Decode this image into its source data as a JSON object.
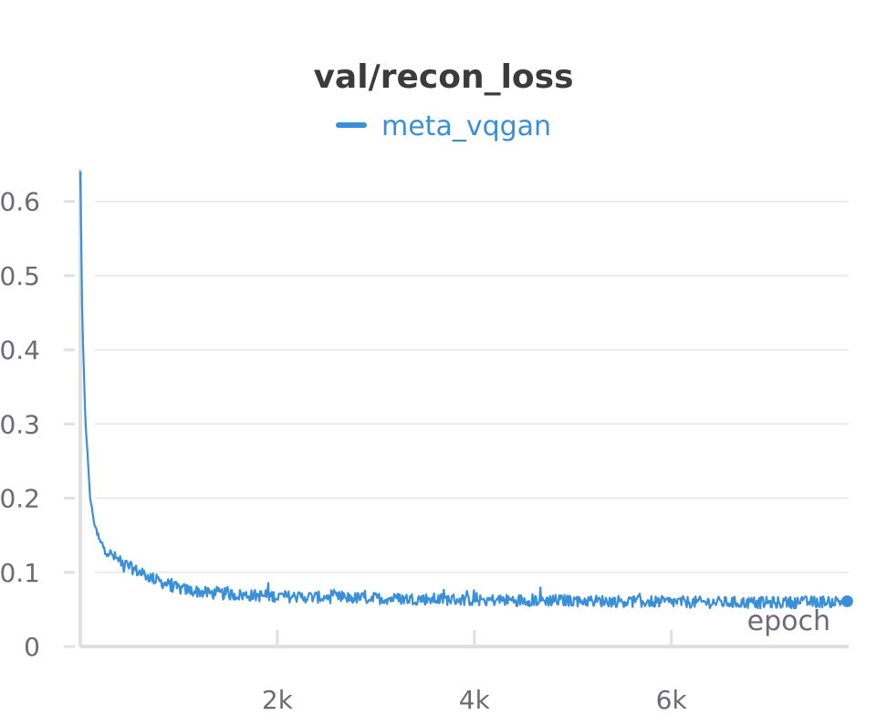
{
  "chart_data": {
    "type": "line",
    "title": "val/recon_loss",
    "xlabel": "epoch",
    "ylabel": "",
    "xlim": [
      0,
      7800
    ],
    "ylim": [
      0,
      0.65
    ],
    "x_ticks": [
      2000,
      4000,
      6000
    ],
    "x_tick_labels": [
      "2k",
      "4k",
      "6k"
    ],
    "y_ticks": [
      0,
      0.1,
      0.2,
      0.3,
      0.4,
      0.5,
      0.6
    ],
    "y_tick_labels": [
      "0",
      "0.1",
      "0.2",
      "0.3",
      "0.4",
      "0.5",
      "0.6"
    ],
    "grid": true,
    "legend_position": "top-center",
    "series": [
      {
        "name": "meta_vqgan",
        "color": "#3a8fd9",
        "x": [
          0,
          20,
          50,
          100,
          150,
          200,
          300,
          400,
          600,
          800,
          1000,
          1300,
          1700,
          2200,
          3000,
          4000,
          5000,
          6000,
          7000,
          7780
        ],
        "y": [
          0.64,
          0.44,
          0.31,
          0.2,
          0.16,
          0.14,
          0.125,
          0.115,
          0.1,
          0.088,
          0.078,
          0.072,
          0.069,
          0.067,
          0.065,
          0.063,
          0.062,
          0.06,
          0.059,
          0.061
        ],
        "noise_amplitude": 0.008,
        "end_marker": true
      }
    ]
  }
}
